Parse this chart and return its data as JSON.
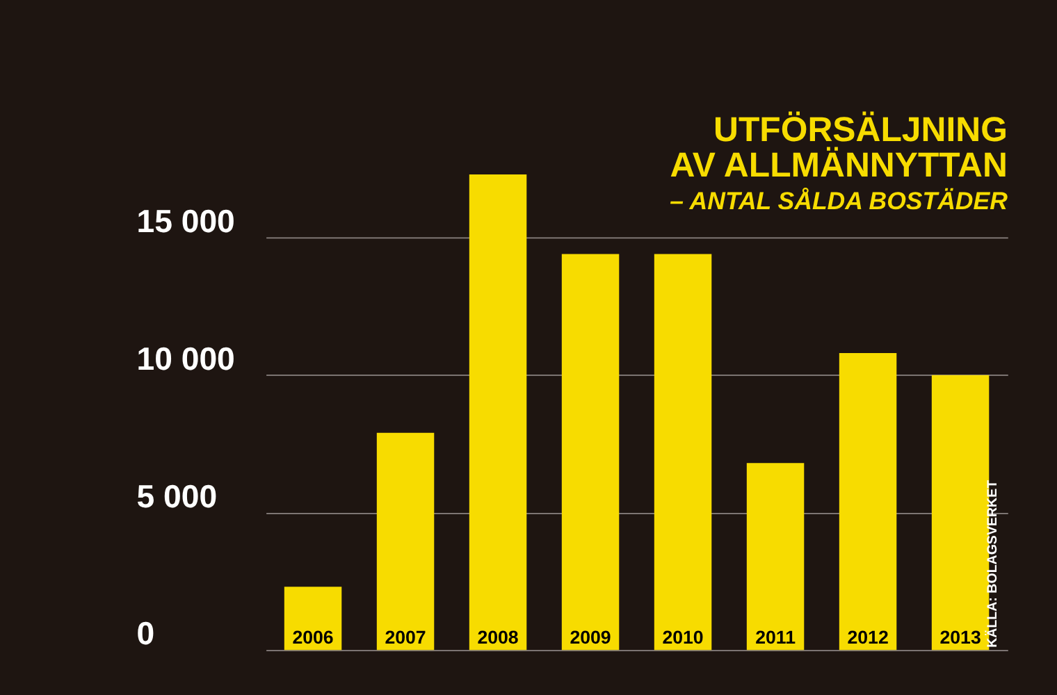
{
  "chart_data": {
    "type": "bar",
    "title": [
      "UTFÖRSÄLJNING",
      "AV ALLMÄNNYTTAN"
    ],
    "subtitle": "– ANTAL SÅLDA BOSTÄDER",
    "categories": [
      "2006",
      "2007",
      "2008",
      "2009",
      "2010",
      "2011",
      "2012",
      "2013"
    ],
    "values": [
      2300,
      7900,
      17300,
      14400,
      14400,
      6800,
      10800,
      10000
    ],
    "color": "#f7dc00",
    "ylim": [
      0,
      17300
    ],
    "yticks": [
      {
        "value": 0,
        "label": "0"
      },
      {
        "value": 5000,
        "label": "5 000"
      },
      {
        "value": 10000,
        "label": "10 000"
      },
      {
        "value": 15000,
        "label": "15 000"
      }
    ],
    "grid": "y",
    "annotations": [
      "KÄLLA: BOLAGSVERKET"
    ]
  }
}
